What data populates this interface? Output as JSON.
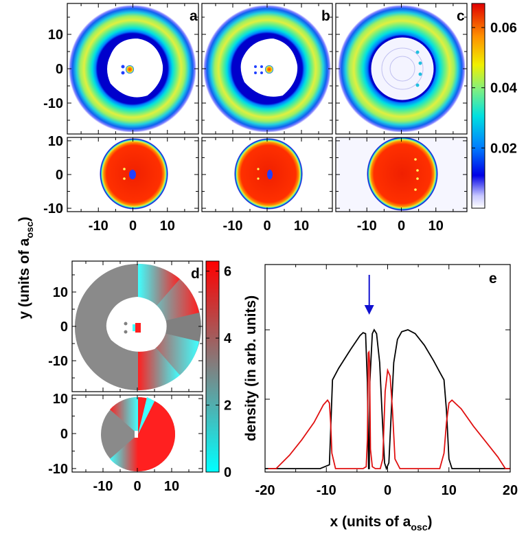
{
  "chart_data": [
    {
      "type": "heatmap",
      "panel": "a",
      "title": "",
      "xlabel": "x (units of a_osc)",
      "ylabel": "y (units of a_osc)",
      "top": {
        "xlim": [
          -19,
          19
        ],
        "ylim": [
          -19,
          19
        ],
        "yticks": [
          -10,
          0,
          10
        ],
        "ring_inner": 10.5,
        "ring_outer": 18.5,
        "core_radius": 9.5
      },
      "bottom": {
        "xlim": [
          -19,
          19
        ],
        "ylim": [
          -11,
          11
        ],
        "yticks": [
          -10,
          0,
          10
        ],
        "disk_radius": 8.5
      },
      "xticks": [
        -10,
        0,
        10
      ]
    },
    {
      "type": "heatmap",
      "panel": "b",
      "title": "",
      "top": {
        "xlim": [
          -19,
          19
        ],
        "ylim": [
          -19,
          19
        ],
        "ring_inner": 10.5,
        "ring_outer": 18.5,
        "core_radius": 9.5
      },
      "bottom": {
        "xlim": [
          -19,
          19
        ],
        "ylim": [
          -11,
          11
        ],
        "disk_radius": 8.5
      },
      "xticks": [
        -10,
        0,
        10
      ]
    },
    {
      "type": "heatmap",
      "panel": "c",
      "title": "",
      "top": {
        "xlim": [
          -19,
          19
        ],
        "ylim": [
          -19,
          19
        ],
        "ring_inner": 9.5,
        "ring_outer": 18.5,
        "core_radius": 9.5
      },
      "bottom": {
        "xlim": [
          -19,
          19
        ],
        "ylim": [
          -11,
          11
        ],
        "disk_radius": 9
      },
      "xticks": [
        -10,
        0,
        10
      ],
      "colorbar": {
        "range": [
          0,
          0.068
        ],
        "ticks": [
          0.02,
          0.04,
          0.06
        ],
        "tick_labels": [
          "0.02",
          "0.04",
          "0.06"
        ]
      }
    },
    {
      "type": "heatmap",
      "panel": "d",
      "title": "",
      "top": {
        "xlim": [
          -19,
          19
        ],
        "ylim": [
          -19,
          19
        ],
        "yticks": [
          -10,
          0,
          10
        ],
        "ring_inner": 7,
        "ring_outer": 18.5
      },
      "bottom": {
        "xlim": [
          -19,
          19
        ],
        "ylim": [
          -11,
          11
        ],
        "yticks": [
          -10,
          0,
          10
        ],
        "disk_radius": 9
      },
      "xticks": [
        -10,
        0,
        10
      ],
      "colorbar": {
        "range": [
          0,
          6.3
        ],
        "ticks": [
          0,
          2,
          4,
          6
        ],
        "tick_labels": [
          "0",
          "2",
          "4",
          "6"
        ]
      }
    },
    {
      "type": "line",
      "panel": "e",
      "xlabel": "x (units of a_osc)",
      "ylabel": "density (in arb. units)",
      "xlim": [
        -20,
        20
      ],
      "ylim": [
        0,
        1
      ],
      "xticks": [
        -20,
        -10,
        0,
        10,
        20
      ],
      "arrow_x": -3,
      "series": [
        {
          "name": "black",
          "color": "#000000",
          "x": [
            -20,
            -11,
            -9.5,
            -9,
            -8,
            -6,
            -4.5,
            -4,
            -3.6,
            -3.3,
            -3.1,
            -3.0,
            -2.9,
            -2.5,
            -2.2,
            -1.8,
            -1.3,
            -0.9,
            -0.5,
            -0.2,
            0.2,
            0.6,
            1.0,
            1.6,
            2.3,
            3.3,
            4.5,
            6,
            7.5,
            8.5,
            9.2,
            9.6,
            10.0,
            10.5,
            20
          ],
          "y": [
            0,
            0,
            0.02,
            0.46,
            0.52,
            0.62,
            0.69,
            0.705,
            0.7,
            0.45,
            0.0,
            0.0,
            0.45,
            0.7,
            0.72,
            0.7,
            0.55,
            0.28,
            0.03,
            0.0,
            0.03,
            0.3,
            0.55,
            0.67,
            0.71,
            0.72,
            0.7,
            0.64,
            0.56,
            0.5,
            0.46,
            0.3,
            0.05,
            0,
            0
          ]
        },
        {
          "name": "red",
          "color": "#e01010",
          "x": [
            -19.5,
            -18.2,
            -16,
            -14,
            -12,
            -10.5,
            -9.8,
            -9.5,
            -9.3,
            -9.1,
            -8.5,
            -4,
            -3.5,
            -3.3,
            -3.15,
            -3.05,
            -2.95,
            -2.8,
            -2.5,
            -2,
            -1.2,
            -0.8,
            -0.4,
            0,
            0.4,
            0.8,
            1.2,
            2,
            8.5,
            9.2,
            9.6,
            10.0,
            10.5,
            12,
            14,
            16,
            18,
            19.2,
            20
          ],
          "y": [
            0,
            0.0,
            0.07,
            0.15,
            0.24,
            0.33,
            0.355,
            0.34,
            0.24,
            0.08,
            0.0,
            0.0,
            0.01,
            0.15,
            0.6,
            0.605,
            0.55,
            0.1,
            0.01,
            0.0,
            0.0,
            0.05,
            0.4,
            0.51,
            0.48,
            0.3,
            0.05,
            0.0,
            0.0,
            0.08,
            0.24,
            0.34,
            0.355,
            0.31,
            0.22,
            0.14,
            0.06,
            0.0,
            0
          ]
        }
      ]
    }
  ],
  "panel_letters": {
    "a": "a",
    "b": "b",
    "c": "c",
    "d": "d",
    "e": "e"
  },
  "axis_labels": {
    "y_main": "y (units of a",
    "y_main_sub": "osc",
    "y_main_close": ")",
    "x_main": "x (units of a",
    "x_main_sub": "osc",
    "x_main_close": ")",
    "density": "density (in arb. units)"
  }
}
